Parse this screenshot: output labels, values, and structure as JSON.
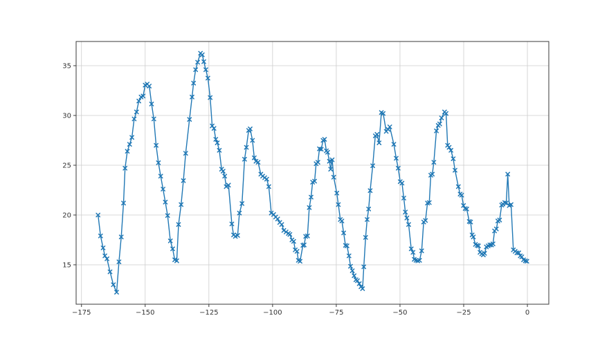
{
  "meta": {
    "app_type": "matplotlib-style-figure",
    "background_color": "#ffffff"
  },
  "chart_data": {
    "type": "line",
    "title": "",
    "xlabel": "",
    "ylabel": "",
    "grid": true,
    "legend_position": "none",
    "line_color": "#1f77b4",
    "grid_color": "#cccccc",
    "spine_color": "#3a3a3a",
    "tick_text_color": "#333333",
    "marker": "x",
    "xlim": [
      -177.1,
      8.4
    ],
    "ylim": [
      11.04,
      37.43
    ],
    "xticks": {
      "values": [
        -175,
        -150,
        -125,
        -100,
        -75,
        -50,
        -25,
        0
      ],
      "labels": [
        "−175",
        "−150",
        "−125",
        "−100",
        "−75",
        "−50",
        "−25",
        "0"
      ]
    },
    "yticks": {
      "values": [
        15,
        20,
        25,
        30,
        35
      ],
      "labels": [
        "15",
        "20",
        "25",
        "30",
        "35"
      ]
    },
    "series": [
      {
        "name": "series-0",
        "color": "#1f77b4",
        "x": [
          -168.5,
          -167.5,
          -166.5,
          -165.8,
          -165.0,
          -163.8,
          -162.5,
          -161.2,
          -160.3,
          -159.4,
          -158.5,
          -157.9,
          -157.0,
          -156.1,
          -155.2,
          -154.3,
          -153.4,
          -152.5,
          -151.6,
          -150.8,
          -150.0,
          -149.2,
          -148.4,
          -147.5,
          -146.6,
          -145.7,
          -144.8,
          -143.9,
          -143.0,
          -142.1,
          -141.2,
          -140.1,
          -139.2,
          -138.4,
          -137.6,
          -136.9,
          -135.9,
          -135.0,
          -134.1,
          -132.6,
          -131.6,
          -131.0,
          -130.2,
          -129.4,
          -128.3,
          -127.6,
          -127.0,
          -126.2,
          -125.4,
          -124.5,
          -123.7,
          -123.0,
          -122.3,
          -121.7,
          -120.9,
          -120.0,
          -119.4,
          -118.8,
          -118.2,
          -117.3,
          -116.0,
          -115.3,
          -114.6,
          -113.7,
          -113.0,
          -112.0,
          -111.0,
          -110.3,
          -109.4,
          -108.8,
          -107.9,
          -107.2,
          -106.5,
          -105.7,
          -104.6,
          -103.9,
          -103.1,
          -102.3,
          -101.5,
          -100.5,
          -99.6,
          -98.8,
          -98.0,
          -97.2,
          -96.4,
          -95.6,
          -94.7,
          -93.8,
          -93.2,
          -92.4,
          -91.7,
          -91.1,
          -90.4,
          -89.9,
          -89.2,
          -88.1,
          -87.6,
          -87.0,
          -86.3,
          -85.6,
          -84.9,
          -84.3,
          -83.5,
          -82.9,
          -82.2,
          -81.6,
          -80.9,
          -80.2,
          -79.6,
          -78.9,
          -78.4,
          -77.7,
          -77.2,
          -76.6,
          -76.0,
          -74.8,
          -74.2,
          -73.4,
          -72.8,
          -72.1,
          -71.4,
          -70.8,
          -70.0,
          -69.4,
          -68.7,
          -68.0,
          -67.3,
          -66.7,
          -66.0,
          -65.3,
          -64.7,
          -64.2,
          -63.5,
          -62.9,
          -62.3,
          -61.7,
          -60.7,
          -59.7,
          -59.0,
          -58.2,
          -57.3,
          -56.6,
          -55.4,
          -54.7,
          -54.0,
          -52.4,
          -51.5,
          -50.7,
          -49.9,
          -49.2,
          -48.5,
          -47.9,
          -47.3,
          -46.6,
          -45.6,
          -44.9,
          -44.4,
          -43.7,
          -43.0,
          -42.3,
          -41.5,
          -40.7,
          -40.0,
          -39.2,
          -38.5,
          -37.9,
          -37.3,
          -36.7,
          -35.7,
          -35.0,
          -34.4,
          -33.7,
          -32.5,
          -31.9,
          -31.3,
          -30.7,
          -30.0,
          -29.1,
          -28.4,
          -27.1,
          -26.4,
          -25.8,
          -25.1,
          -24.4,
          -23.8,
          -22.8,
          -22.3,
          -21.7,
          -21.2,
          -20.4,
          -19.7,
          -19.2,
          -18.6,
          -17.9,
          -17.3,
          -16.8,
          -16.1,
          -15.4,
          -14.7,
          -14.1,
          -13.5,
          -12.9,
          -12.2,
          -11.6,
          -10.9,
          -10.1,
          -9.6,
          -8.9,
          -8.3,
          -7.7,
          -7.1,
          -6.4,
          -5.5,
          -4.8,
          -4.1,
          -3.4,
          -2.8,
          -2.2,
          -1.5,
          -0.8,
          -0.2
        ],
        "y": [
          20.0,
          17.9,
          16.7,
          15.9,
          15.6,
          14.3,
          13.0,
          12.25,
          15.3,
          17.8,
          21.2,
          24.7,
          26.4,
          27.1,
          27.8,
          29.65,
          30.35,
          31.45,
          31.85,
          31.95,
          33.05,
          33.15,
          32.95,
          31.15,
          29.65,
          27.0,
          25.25,
          23.9,
          22.6,
          21.3,
          19.95,
          17.4,
          16.6,
          15.5,
          15.4,
          19.05,
          21.05,
          23.45,
          26.2,
          29.6,
          31.85,
          33.25,
          34.6,
          35.35,
          36.25,
          36.1,
          35.4,
          34.6,
          33.75,
          31.8,
          28.95,
          28.7,
          27.6,
          27.25,
          26.5,
          24.6,
          24.4,
          23.9,
          22.85,
          23.0,
          19.1,
          18.0,
          17.85,
          17.95,
          20.2,
          21.15,
          25.6,
          26.8,
          28.5,
          28.65,
          27.5,
          25.75,
          25.4,
          25.3,
          24.1,
          23.9,
          23.75,
          23.6,
          22.85,
          20.2,
          20.05,
          19.8,
          19.6,
          19.25,
          19.05,
          18.45,
          18.3,
          18.15,
          18.05,
          17.5,
          17.35,
          16.5,
          16.35,
          15.45,
          15.35,
          16.95,
          17.0,
          17.85,
          17.9,
          20.75,
          21.8,
          23.3,
          23.4,
          25.15,
          25.3,
          26.65,
          26.6,
          27.5,
          27.6,
          26.45,
          26.3,
          25.4,
          24.6,
          25.55,
          23.8,
          22.2,
          21.05,
          19.55,
          19.4,
          18.2,
          16.95,
          16.9,
          15.9,
          14.85,
          14.4,
          13.9,
          13.5,
          13.4,
          13.1,
          12.8,
          12.6,
          14.8,
          17.75,
          19.55,
          20.6,
          22.45,
          24.95,
          27.95,
          28.1,
          27.25,
          30.3,
          30.2,
          28.4,
          28.6,
          28.85,
          27.1,
          25.7,
          24.7,
          23.35,
          23.2,
          21.7,
          20.3,
          19.7,
          19.05,
          16.6,
          16.25,
          15.55,
          15.45,
          15.4,
          15.45,
          16.4,
          19.3,
          19.45,
          21.2,
          21.25,
          24.0,
          24.1,
          25.3,
          28.45,
          29.0,
          29.15,
          29.75,
          30.35,
          30.2,
          27.0,
          26.8,
          26.5,
          25.65,
          24.5,
          22.85,
          22.1,
          22.0,
          20.95,
          20.65,
          20.6,
          19.35,
          19.3,
          18.0,
          17.8,
          17.05,
          16.95,
          16.9,
          16.25,
          16.1,
          16.0,
          16.15,
          16.8,
          16.9,
          17.0,
          17.0,
          17.1,
          18.4,
          18.6,
          19.4,
          19.5,
          21.0,
          21.1,
          21.25,
          21.2,
          24.1,
          20.95,
          21.05,
          16.5,
          16.35,
          16.2,
          16.2,
          15.9,
          15.8,
          15.5,
          15.4,
          15.35
        ]
      }
    ]
  }
}
